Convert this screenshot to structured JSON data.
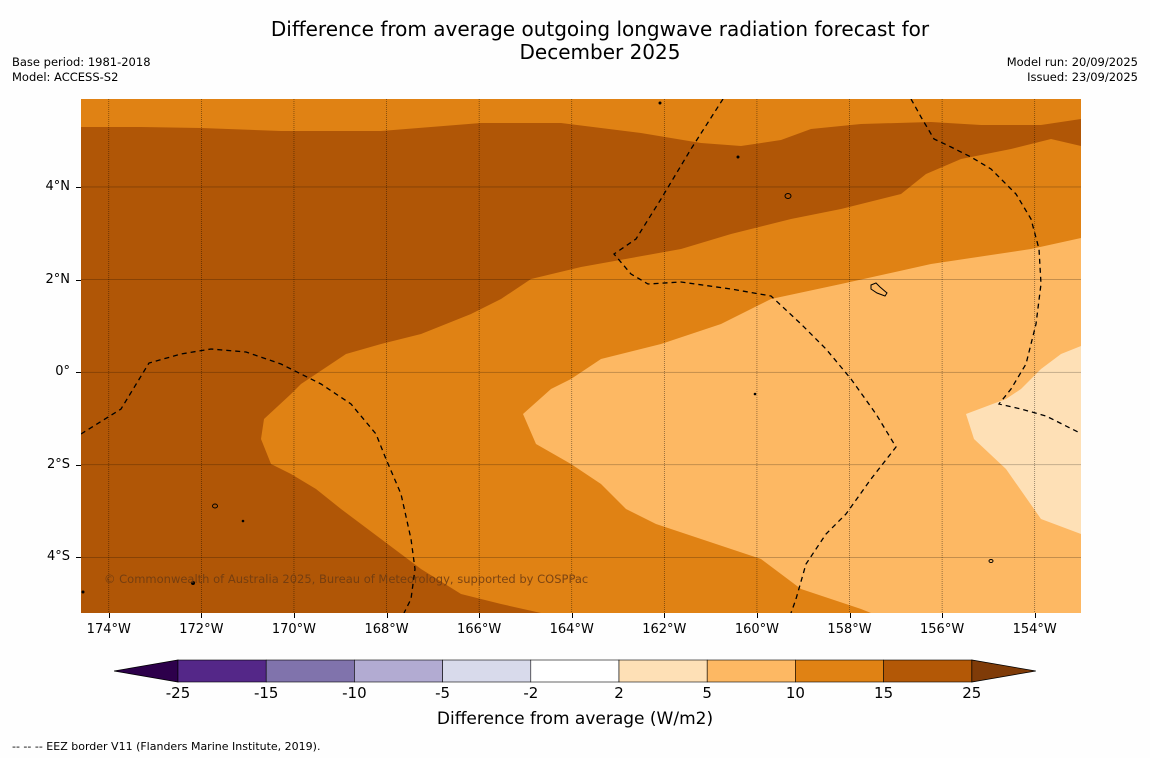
{
  "title": {
    "line1": "Difference from average outgoing longwave radiation forecast for",
    "line2": "December 2025"
  },
  "meta_left": {
    "base_period": "Base period: 1981-2018",
    "model": "Model: ACCESS-S2"
  },
  "meta_right": {
    "model_run": "Model run: 20/09/2025",
    "issued": "Issued: 23/09/2025"
  },
  "map": {
    "lat_labels": [
      "4°N",
      "2°N",
      "0°",
      "2°S",
      "4°S"
    ],
    "lon_labels": [
      "174°W",
      "172°W",
      "170°W",
      "168°W",
      "166°W",
      "164°W",
      "162°W",
      "160°W",
      "158°W",
      "156°W",
      "154°W"
    ],
    "lat_values": [
      4,
      2,
      0,
      -2,
      -4
    ],
    "lon_values": [
      -174,
      -172,
      -170,
      -168,
      -166,
      -164,
      -162,
      -160,
      -158,
      -156,
      -154
    ],
    "extent": {
      "lon_min": -174.6,
      "lon_max": -153.0,
      "lat_min": -5.2,
      "lat_max": 5.9
    },
    "copyright": "© Commonwealth of Australia 2025, Bureau of Meteorology, supported by COSPPac",
    "colors": {
      "c15_25": "#b05606",
      "c10_15": "#e08214",
      "c5_10": "#fdb863",
      "c2_5": "#fee0b6",
      "top_strip": "#fdb863"
    }
  },
  "colorbar": {
    "title": "Difference from average (W/m2)",
    "tick_labels": [
      "-25",
      "-15",
      "-10",
      "-5",
      "-2",
      "2",
      "5",
      "10",
      "15",
      "25"
    ],
    "segment_colors": [
      "#542788",
      "#8073ac",
      "#b2abd2",
      "#d8daeb",
      "#ffffff",
      "#fee0b6",
      "#fdb863",
      "#e08214",
      "#b35806"
    ],
    "under_color": "#2d004b",
    "over_color": "#7f3b08"
  },
  "legend_note": "--  --  -- EEZ border V11 (Flanders Marine Institute, 2019)."
}
